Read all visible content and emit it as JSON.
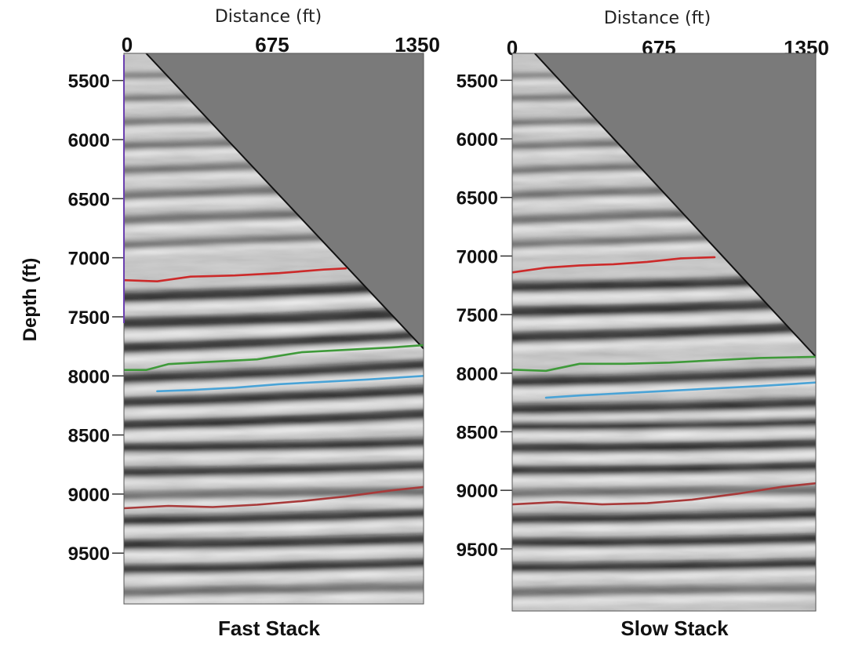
{
  "chart_data": {
    "type": "seismic-depth-section",
    "ylabel": "Depth (ft)",
    "colors": {
      "background_wedge": "#7a7a7a",
      "red_horizon": "#cc2a2a",
      "green_horizon": "#3f9a3a",
      "blue_horizon": "#4aa3d6",
      "deep_red_horizon": "#a83a3a",
      "axis_stripe": "#6a3fb0"
    },
    "panels": [
      {
        "title": "Fast Stack",
        "xlabel": "Distance (ft)",
        "x_ticks": [
          0,
          675,
          1350
        ],
        "x_tick_labels": [
          "0",
          "675",
          "1350"
        ],
        "xlim": [
          0,
          1350
        ],
        "y_ticks": [
          5500,
          6000,
          6500,
          7000,
          7500,
          8000,
          8500,
          9000,
          9500
        ],
        "y_tick_labels": [
          "5500",
          "6000",
          "6500",
          "7000",
          "7500",
          "8000",
          "8500",
          "9000",
          "9500"
        ],
        "ylim": [
          5270,
          9930
        ],
        "no_data_wedge": [
          [
            100,
            5270
          ],
          [
            1350,
            5270
          ],
          [
            1350,
            7770
          ]
        ],
        "horizons": [
          {
            "name": "red",
            "color": "#cc2a2a",
            "x": [
              0,
              150,
              300,
              500,
              700,
              900,
              1000
            ],
            "depth": [
              7190,
              7200,
              7160,
              7150,
              7130,
              7100,
              7090
            ]
          },
          {
            "name": "green",
            "color": "#3f9a3a",
            "x": [
              0,
              100,
              200,
              400,
              600,
              800,
              1000,
              1200,
              1350
            ],
            "depth": [
              7950,
              7950,
              7900,
              7880,
              7860,
              7800,
              7780,
              7760,
              7740
            ]
          },
          {
            "name": "blue",
            "color": "#4aa3d6",
            "x": [
              150,
              300,
              500,
              700,
              900,
              1100,
              1350
            ],
            "depth": [
              8130,
              8120,
              8100,
              8070,
              8050,
              8030,
              8000
            ]
          },
          {
            "name": "deep-red",
            "color": "#a83a3a",
            "x": [
              0,
              200,
              400,
              600,
              800,
              1000,
              1200,
              1350
            ],
            "depth": [
              9120,
              9100,
              9110,
              9090,
              9060,
              9020,
              8970,
              8940
            ]
          }
        ],
        "reflectors": [
          {
            "d0": 5470,
            "d1": 5440,
            "w": 50,
            "strong": false
          },
          {
            "d0": 5660,
            "d1": 5620,
            "w": 60,
            "strong": false
          },
          {
            "d0": 5860,
            "d1": 5810,
            "w": 65,
            "strong": false
          },
          {
            "d0": 6060,
            "d1": 6000,
            "w": 70,
            "strong": false
          },
          {
            "d0": 6270,
            "d1": 6190,
            "w": 70,
            "strong": false
          },
          {
            "d0": 6480,
            "d1": 6400,
            "w": 75,
            "strong": false
          },
          {
            "d0": 6690,
            "d1": 6600,
            "w": 80,
            "strong": false
          },
          {
            "d0": 6900,
            "d1": 6800,
            "w": 70,
            "strong": false
          },
          {
            "d0": 7340,
            "d1": 7230,
            "w": 95,
            "strong": true
          },
          {
            "d0": 7560,
            "d1": 7460,
            "w": 100,
            "strong": true
          },
          {
            "d0": 7770,
            "d1": 7640,
            "w": 95,
            "strong": true
          },
          {
            "d0": 8030,
            "d1": 7900,
            "w": 90,
            "strong": true
          },
          {
            "d0": 8230,
            "d1": 8120,
            "w": 90,
            "strong": true
          },
          {
            "d0": 8420,
            "d1": 8320,
            "w": 90,
            "strong": true
          },
          {
            "d0": 8610,
            "d1": 8560,
            "w": 85,
            "strong": true
          },
          {
            "d0": 8820,
            "d1": 8760,
            "w": 85,
            "strong": true
          },
          {
            "d0": 9020,
            "d1": 8980,
            "w": 80,
            "strong": false
          },
          {
            "d0": 9230,
            "d1": 9160,
            "w": 85,
            "strong": true
          },
          {
            "d0": 9430,
            "d1": 9380,
            "w": 90,
            "strong": true
          },
          {
            "d0": 9640,
            "d1": 9580,
            "w": 85,
            "strong": true
          },
          {
            "d0": 9840,
            "d1": 9790,
            "w": 80,
            "strong": false
          }
        ]
      },
      {
        "title": "Slow Stack",
        "xlabel": "Distance (ft)",
        "x_ticks": [
          0,
          675,
          1350
        ],
        "x_tick_labels": [
          "0",
          "675",
          "1350"
        ],
        "xlim": [
          0,
          1350
        ],
        "y_ticks": [
          5500,
          6000,
          6500,
          7000,
          7500,
          8000,
          8500,
          9000,
          9500
        ],
        "y_tick_labels": [
          "5500",
          "6000",
          "6500",
          "7000",
          "7500",
          "8000",
          "8500",
          "9000",
          "9500"
        ],
        "ylim": [
          5270,
          10030
        ],
        "no_data_wedge": [
          [
            100,
            5270
          ],
          [
            1350,
            5270
          ],
          [
            1350,
            7860
          ]
        ],
        "horizons": [
          {
            "name": "red",
            "color": "#cc2a2a",
            "x": [
              0,
              150,
              300,
              450,
              600,
              750,
              900
            ],
            "depth": [
              7140,
              7100,
              7080,
              7070,
              7050,
              7020,
              7010
            ]
          },
          {
            "name": "green",
            "color": "#3f9a3a",
            "x": [
              0,
              150,
              300,
              500,
              700,
              900,
              1100,
              1350
            ],
            "depth": [
              7970,
              7980,
              7920,
              7920,
              7910,
              7890,
              7870,
              7860
            ]
          },
          {
            "name": "blue",
            "color": "#4aa3d6",
            "x": [
              150,
              300,
              500,
              700,
              900,
              1100,
              1350
            ],
            "depth": [
              8210,
              8190,
              8170,
              8150,
              8130,
              8110,
              8080
            ]
          },
          {
            "name": "deep-red",
            "color": "#a83a3a",
            "x": [
              0,
              200,
              400,
              600,
              800,
              1000,
              1200,
              1350
            ],
            "depth": [
              9120,
              9100,
              9120,
              9110,
              9080,
              9030,
              8970,
              8940
            ]
          }
        ],
        "reflectors": [
          {
            "d0": 5470,
            "d1": 5450,
            "w": 50,
            "strong": false
          },
          {
            "d0": 5660,
            "d1": 5630,
            "w": 60,
            "strong": false
          },
          {
            "d0": 5870,
            "d1": 5820,
            "w": 65,
            "strong": false
          },
          {
            "d0": 6070,
            "d1": 6010,
            "w": 70,
            "strong": false
          },
          {
            "d0": 6280,
            "d1": 6200,
            "w": 70,
            "strong": false
          },
          {
            "d0": 6490,
            "d1": 6410,
            "w": 75,
            "strong": false
          },
          {
            "d0": 6700,
            "d1": 6610,
            "w": 80,
            "strong": false
          },
          {
            "d0": 6910,
            "d1": 6820,
            "w": 70,
            "strong": false
          },
          {
            "d0": 7270,
            "d1": 7200,
            "w": 90,
            "strong": true
          },
          {
            "d0": 7480,
            "d1": 7400,
            "w": 95,
            "strong": true
          },
          {
            "d0": 7700,
            "d1": 7600,
            "w": 95,
            "strong": true
          },
          {
            "d0": 8080,
            "d1": 7990,
            "w": 90,
            "strong": true
          },
          {
            "d0": 8310,
            "d1": 8250,
            "w": 90,
            "strong": true
          },
          {
            "d0": 8450,
            "d1": 8410,
            "w": 90,
            "strong": true
          },
          {
            "d0": 8640,
            "d1": 8600,
            "w": 90,
            "strong": true
          },
          {
            "d0": 8830,
            "d1": 8790,
            "w": 85,
            "strong": true
          },
          {
            "d0": 9030,
            "d1": 9000,
            "w": 80,
            "strong": false
          },
          {
            "d0": 9250,
            "d1": 9200,
            "w": 85,
            "strong": true
          },
          {
            "d0": 9450,
            "d1": 9410,
            "w": 85,
            "strong": true
          },
          {
            "d0": 9660,
            "d1": 9620,
            "w": 85,
            "strong": true
          },
          {
            "d0": 9880,
            "d1": 9840,
            "w": 80,
            "strong": false
          }
        ]
      }
    ]
  }
}
